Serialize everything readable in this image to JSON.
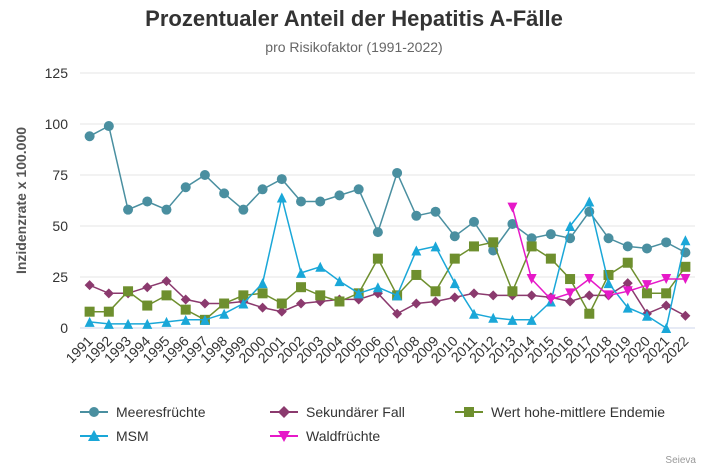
{
  "title": "Prozentualer Anteil der Hepatitis A-Fälle",
  "subtitle": "pro Risikofaktor (1991-2022)",
  "credit": "Seieva",
  "chart_data": {
    "type": "line",
    "ylabel": "Inzidenzrate x 100.000",
    "ylim": [
      0,
      125
    ],
    "yticks": [
      0,
      25,
      50,
      75,
      100,
      125
    ],
    "grid": true,
    "legend_position": "bottom",
    "x": [
      "1991",
      "1992",
      "1993",
      "1994",
      "1995",
      "1996",
      "1997",
      "1998",
      "1999",
      "2000",
      "2001",
      "2002",
      "2003",
      "2004",
      "2005",
      "2006",
      "2007",
      "2008",
      "2009",
      "2010",
      "2011",
      "2012",
      "2013",
      "2014",
      "2015",
      "2016",
      "2017",
      "2018",
      "2019",
      "2020",
      "2021",
      "2022"
    ],
    "series": [
      {
        "name": "Meeresfrüchte",
        "color": "#4a8fa0",
        "marker": "circle",
        "values": [
          94,
          99,
          58,
          62,
          58,
          69,
          75,
          66,
          58,
          68,
          73,
          62,
          62,
          65,
          68,
          47,
          76,
          55,
          57,
          45,
          52,
          38,
          51,
          44,
          46,
          44,
          57,
          44,
          40,
          39,
          42,
          37
        ]
      },
      {
        "name": "Sekundärer Fall",
        "color": "#8b3a6e",
        "marker": "diamond",
        "values": [
          21,
          17,
          17,
          20,
          23,
          14,
          12,
          12,
          13,
          10,
          8,
          12,
          13,
          14,
          14,
          17,
          7,
          12,
          13,
          15,
          17,
          16,
          16,
          16,
          15,
          13,
          16,
          16,
          22,
          7,
          11,
          6
        ]
      },
      {
        "name": "Wert hohe-mittlere Endemie",
        "color": "#6e8f2e",
        "marker": "square",
        "values": [
          8,
          8,
          18,
          11,
          16,
          9,
          4,
          12,
          16,
          17,
          12,
          20,
          16,
          13,
          17,
          34,
          16,
          26,
          18,
          34,
          40,
          42,
          18,
          40,
          34,
          24,
          7,
          26,
          32,
          17,
          17,
          30
        ]
      },
      {
        "name": "MSM",
        "color": "#1aa7d8",
        "marker": "triangle-up",
        "values": [
          3,
          2,
          2,
          2,
          3,
          4,
          4,
          7,
          12,
          22,
          64,
          27,
          30,
          23,
          17,
          20,
          16,
          38,
          40,
          22,
          7,
          5,
          4,
          4,
          13,
          50,
          62,
          22,
          10,
          6,
          0,
          43
        ]
      },
      {
        "name": "Waldfrüchte",
        "color": "#e619c8",
        "marker": "triangle-down",
        "values": [
          null,
          null,
          null,
          null,
          null,
          null,
          null,
          null,
          null,
          null,
          null,
          null,
          null,
          null,
          null,
          null,
          null,
          null,
          null,
          null,
          null,
          null,
          59,
          24,
          14,
          17,
          24,
          16,
          18,
          21,
          24,
          24
        ]
      }
    ]
  }
}
